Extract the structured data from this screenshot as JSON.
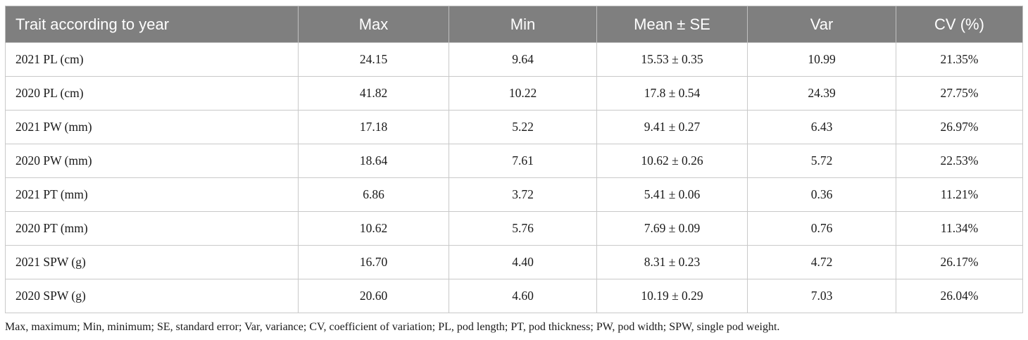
{
  "table": {
    "headers": [
      "Trait according to year",
      "Max",
      "Min",
      "Mean ± SE",
      "Var",
      "CV (%)"
    ],
    "rows": [
      [
        "2021 PL (cm)",
        "24.15",
        "9.64",
        "15.53 ± 0.35",
        "10.99",
        "21.35%"
      ],
      [
        "2020 PL (cm)",
        "41.82",
        "10.22",
        "17.8 ± 0.54",
        "24.39",
        "27.75%"
      ],
      [
        "2021 PW (mm)",
        "17.18",
        "5.22",
        "9.41 ± 0.27",
        "6.43",
        "26.97%"
      ],
      [
        "2020 PW (mm)",
        "18.64",
        "7.61",
        "10.62 ± 0.26",
        "5.72",
        "22.53%"
      ],
      [
        "2021 PT (mm)",
        "6.86",
        "3.72",
        "5.41 ± 0.06",
        "0.36",
        "11.21%"
      ],
      [
        "2020 PT (mm)",
        "10.62",
        "5.76",
        "7.69 ± 0.09",
        "0.76",
        "11.34%"
      ],
      [
        "2021 SPW (g)",
        "16.70",
        "4.40",
        "8.31 ± 0.23",
        "4.72",
        "26.17%"
      ],
      [
        "2020 SPW (g)",
        "20.60",
        "4.60",
        "10.19 ± 0.29",
        "7.03",
        "26.04%"
      ]
    ]
  },
  "footnote": "Max, maximum; Min, minimum; SE, standard error; Var, variance; CV, coefficient of variation; PL, pod length; PT, pod thickness; PW, pod width; SPW, single pod weight.",
  "colors": {
    "header_background": "#7f7f7f",
    "header_text": "#ffffff",
    "grid_line": "#c9c9c9"
  }
}
